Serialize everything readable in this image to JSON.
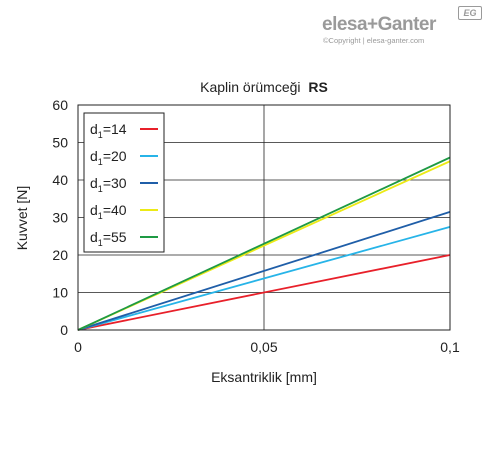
{
  "brand": {
    "name": "elesa+Ganter",
    "badge": "EG",
    "copyright": "©Copyright | elesa-ganter.com"
  },
  "chart_data": {
    "type": "line",
    "title": "Kaplin örümceği",
    "title_bold": "RS",
    "xlabel": "Eksantriklik [mm]",
    "ylabel": "Kuvvet [N]",
    "xlim": [
      0,
      0.1
    ],
    "ylim": [
      0,
      60
    ],
    "x_ticks": [
      0,
      0.05,
      0.1
    ],
    "x_tick_labels": [
      "0",
      "0,05",
      "0,1"
    ],
    "y_ticks": [
      0,
      10,
      20,
      30,
      40,
      50,
      60
    ],
    "y_tick_labels": [
      "0",
      "10",
      "20",
      "30",
      "40",
      "50",
      "60"
    ],
    "grid": true,
    "legend_position": "top-left",
    "series": [
      {
        "name": "d1=14",
        "name_main": "d",
        "name_sub": "1",
        "name_rest": "=14",
        "color": "#e8202a",
        "x": [
          0,
          0.1
        ],
        "y": [
          0,
          20
        ]
      },
      {
        "name": "d1=20",
        "name_main": "d",
        "name_sub": "1",
        "name_rest": "=20",
        "color": "#27b4e8",
        "x": [
          0,
          0.1
        ],
        "y": [
          0,
          27.5
        ]
      },
      {
        "name": "d1=30",
        "name_main": "d",
        "name_sub": "1",
        "name_rest": "=30",
        "color": "#1f5ea8",
        "x": [
          0,
          0.1
        ],
        "y": [
          0,
          31.5
        ]
      },
      {
        "name": "d1=40",
        "name_main": "d",
        "name_sub": "1",
        "name_rest": "=40",
        "color": "#ecea16",
        "x": [
          0,
          0.1
        ],
        "y": [
          0,
          45
        ]
      },
      {
        "name": "d1=55",
        "name_main": "d",
        "name_sub": "1",
        "name_rest": "=55",
        "color": "#1e9a44",
        "x": [
          0,
          0.1
        ],
        "y": [
          0,
          46
        ]
      }
    ]
  }
}
